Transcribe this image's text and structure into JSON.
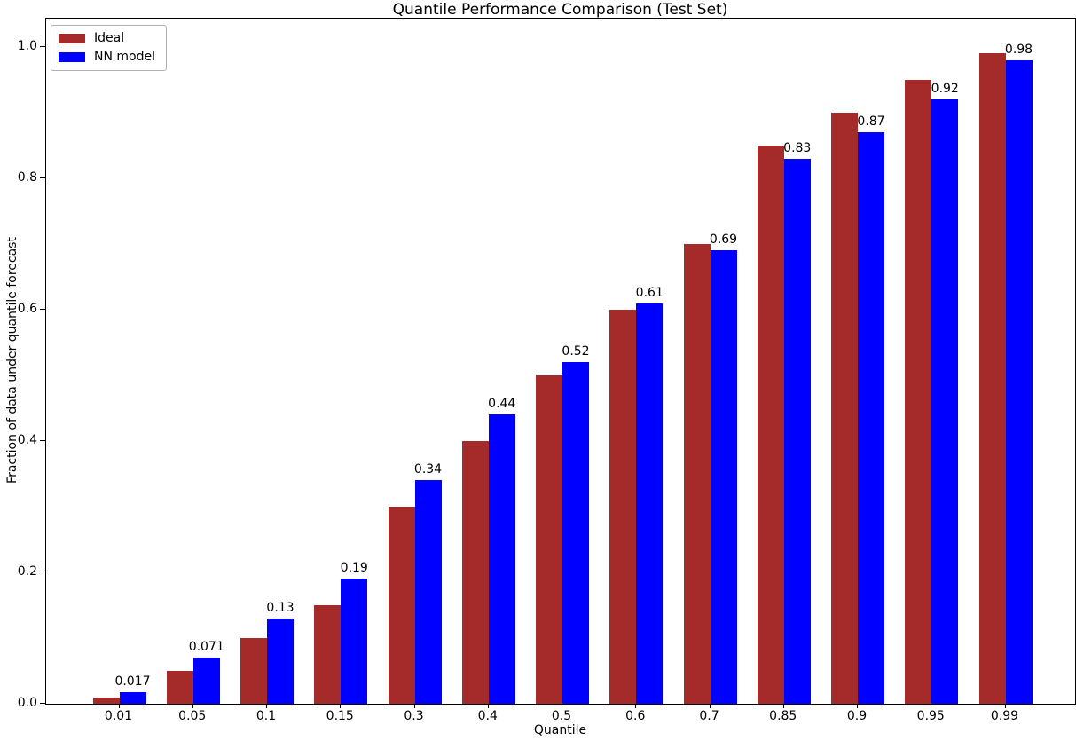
{
  "chart_data": {
    "type": "bar",
    "title": "Quantile Performance Comparison (Test Set)",
    "xlabel": "Quantile",
    "ylabel": "Fraction of data under quantile forecast",
    "categories": [
      "0.01",
      "0.05",
      "0.1",
      "0.15",
      "0.3",
      "0.4",
      "0.5",
      "0.6",
      "0.7",
      "0.85",
      "0.9",
      "0.95",
      "0.99"
    ],
    "series": [
      {
        "name": "Ideal",
        "color": "#A52A2A",
        "values": [
          0.01,
          0.05,
          0.1,
          0.15,
          0.3,
          0.4,
          0.5,
          0.6,
          0.7,
          0.85,
          0.9,
          0.95,
          0.99
        ]
      },
      {
        "name": "NN model",
        "color": "#0000FF",
        "values": [
          0.017,
          0.071,
          0.13,
          0.19,
          0.34,
          0.44,
          0.52,
          0.61,
          0.69,
          0.83,
          0.87,
          0.92,
          0.98
        ]
      }
    ],
    "bar_labels": [
      "0.017",
      "0.071",
      "0.13",
      "0.19",
      "0.34",
      "0.44",
      "0.52",
      "0.61",
      "0.69",
      "0.83",
      "0.87",
      "0.92",
      "0.98"
    ],
    "yticks": [
      "0.0",
      "0.2",
      "0.4",
      "0.6",
      "0.8",
      "1.0"
    ],
    "ylim": [
      0.0,
      1.043
    ],
    "grid": false,
    "legend_position": "upper left"
  }
}
